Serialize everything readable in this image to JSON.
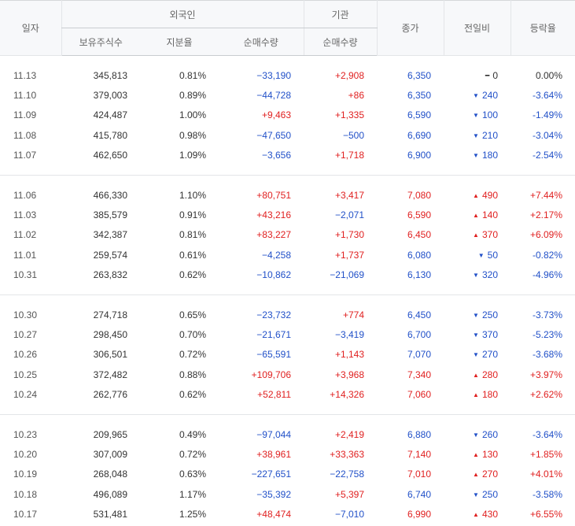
{
  "headers": {
    "date": "일자",
    "foreign": "외국인",
    "institution": "기관",
    "holdings": "보유주식수",
    "ratio": "지분율",
    "net_foreign": "순매수량",
    "net_inst": "순매수량",
    "close": "종가",
    "change": "전일비",
    "rate": "등락율"
  },
  "colors": {
    "up": "#e02020",
    "down": "#2150c8"
  },
  "groups": [
    [
      {
        "date": "11.13",
        "holdings": "345,813",
        "ratio": "0.81%",
        "net_foreign": "−33,190",
        "nf_dir": "down",
        "net_inst": "+2,908",
        "ni_dir": "up",
        "close": "6,350",
        "close_dir": "down",
        "change_dir": "flat",
        "change_icon": "dash-icon",
        "change": "0",
        "rate": "0.00%"
      },
      {
        "date": "11.10",
        "holdings": "379,003",
        "ratio": "0.89%",
        "net_foreign": "−44,728",
        "nf_dir": "down",
        "net_inst": "+86",
        "ni_dir": "up",
        "close": "6,350",
        "close_dir": "down",
        "change_dir": "down",
        "change_icon": "triangle-down-icon",
        "change": "240",
        "rate": "-3.64%"
      },
      {
        "date": "11.09",
        "holdings": "424,487",
        "ratio": "1.00%",
        "net_foreign": "+9,463",
        "nf_dir": "up",
        "net_inst": "+1,335",
        "ni_dir": "up",
        "close": "6,590",
        "close_dir": "down",
        "change_dir": "down",
        "change_icon": "triangle-down-icon",
        "change": "100",
        "rate": "-1.49%"
      },
      {
        "date": "11.08",
        "holdings": "415,780",
        "ratio": "0.98%",
        "net_foreign": "−47,650",
        "nf_dir": "down",
        "net_inst": "−500",
        "ni_dir": "down",
        "close": "6,690",
        "close_dir": "down",
        "change_dir": "down",
        "change_icon": "triangle-down-icon",
        "change": "210",
        "rate": "-3.04%"
      },
      {
        "date": "11.07",
        "holdings": "462,650",
        "ratio": "1.09%",
        "net_foreign": "−3,656",
        "nf_dir": "down",
        "net_inst": "+1,718",
        "ni_dir": "up",
        "close": "6,900",
        "close_dir": "down",
        "change_dir": "down",
        "change_icon": "triangle-down-icon",
        "change": "180",
        "rate": "-2.54%"
      }
    ],
    [
      {
        "date": "11.06",
        "holdings": "466,330",
        "ratio": "1.10%",
        "net_foreign": "+80,751",
        "nf_dir": "up",
        "net_inst": "+3,417",
        "ni_dir": "up",
        "close": "7,080",
        "close_dir": "up",
        "change_dir": "up",
        "change_icon": "triangle-up-icon",
        "change": "490",
        "rate": "+7.44%"
      },
      {
        "date": "11.03",
        "holdings": "385,579",
        "ratio": "0.91%",
        "net_foreign": "+43,216",
        "nf_dir": "up",
        "net_inst": "−2,071",
        "ni_dir": "down",
        "close": "6,590",
        "close_dir": "up",
        "change_dir": "up",
        "change_icon": "triangle-up-icon",
        "change": "140",
        "rate": "+2.17%"
      },
      {
        "date": "11.02",
        "holdings": "342,387",
        "ratio": "0.81%",
        "net_foreign": "+83,227",
        "nf_dir": "up",
        "net_inst": "+1,730",
        "ni_dir": "up",
        "close": "6,450",
        "close_dir": "up",
        "change_dir": "up",
        "change_icon": "triangle-up-icon",
        "change": "370",
        "rate": "+6.09%"
      },
      {
        "date": "11.01",
        "holdings": "259,574",
        "ratio": "0.61%",
        "net_foreign": "−4,258",
        "nf_dir": "down",
        "net_inst": "+1,737",
        "ni_dir": "up",
        "close": "6,080",
        "close_dir": "down",
        "change_dir": "down",
        "change_icon": "triangle-down-icon",
        "change": "50",
        "rate": "-0.82%"
      },
      {
        "date": "10.31",
        "holdings": "263,832",
        "ratio": "0.62%",
        "net_foreign": "−10,862",
        "nf_dir": "down",
        "net_inst": "−21,069",
        "ni_dir": "down",
        "close": "6,130",
        "close_dir": "down",
        "change_dir": "down",
        "change_icon": "triangle-down-icon",
        "change": "320",
        "rate": "-4.96%"
      }
    ],
    [
      {
        "date": "10.30",
        "holdings": "274,718",
        "ratio": "0.65%",
        "net_foreign": "−23,732",
        "nf_dir": "down",
        "net_inst": "+774",
        "ni_dir": "up",
        "close": "6,450",
        "close_dir": "down",
        "change_dir": "down",
        "change_icon": "triangle-down-icon",
        "change": "250",
        "rate": "-3.73%"
      },
      {
        "date": "10.27",
        "holdings": "298,450",
        "ratio": "0.70%",
        "net_foreign": "−21,671",
        "nf_dir": "down",
        "net_inst": "−3,419",
        "ni_dir": "down",
        "close": "6,700",
        "close_dir": "down",
        "change_dir": "down",
        "change_icon": "triangle-down-icon",
        "change": "370",
        "rate": "-5.23%"
      },
      {
        "date": "10.26",
        "holdings": "306,501",
        "ratio": "0.72%",
        "net_foreign": "−65,591",
        "nf_dir": "down",
        "net_inst": "+1,143",
        "ni_dir": "up",
        "close": "7,070",
        "close_dir": "down",
        "change_dir": "down",
        "change_icon": "triangle-down-icon",
        "change": "270",
        "rate": "-3.68%"
      },
      {
        "date": "10.25",
        "holdings": "372,482",
        "ratio": "0.88%",
        "net_foreign": "+109,706",
        "nf_dir": "up",
        "net_inst": "+3,968",
        "ni_dir": "up",
        "close": "7,340",
        "close_dir": "up",
        "change_dir": "up",
        "change_icon": "triangle-up-icon",
        "change": "280",
        "rate": "+3.97%"
      },
      {
        "date": "10.24",
        "holdings": "262,776",
        "ratio": "0.62%",
        "net_foreign": "+52,811",
        "nf_dir": "up",
        "net_inst": "+14,326",
        "ni_dir": "up",
        "close": "7,060",
        "close_dir": "up",
        "change_dir": "up",
        "change_icon": "triangle-up-icon",
        "change": "180",
        "rate": "+2.62%"
      }
    ],
    [
      {
        "date": "10.23",
        "holdings": "209,965",
        "ratio": "0.49%",
        "net_foreign": "−97,044",
        "nf_dir": "down",
        "net_inst": "+2,419",
        "ni_dir": "up",
        "close": "6,880",
        "close_dir": "down",
        "change_dir": "down",
        "change_icon": "triangle-down-icon",
        "change": "260",
        "rate": "-3.64%"
      },
      {
        "date": "10.20",
        "holdings": "307,009",
        "ratio": "0.72%",
        "net_foreign": "+38,961",
        "nf_dir": "up",
        "net_inst": "+33,363",
        "ni_dir": "up",
        "close": "7,140",
        "close_dir": "up",
        "change_dir": "up",
        "change_icon": "triangle-up-icon",
        "change": "130",
        "rate": "+1.85%"
      },
      {
        "date": "10.19",
        "holdings": "268,048",
        "ratio": "0.63%",
        "net_foreign": "−227,651",
        "nf_dir": "down",
        "net_inst": "−22,758",
        "ni_dir": "down",
        "close": "7,010",
        "close_dir": "up",
        "change_dir": "up",
        "change_icon": "triangle-up-icon",
        "change": "270",
        "rate": "+4.01%"
      },
      {
        "date": "10.18",
        "holdings": "496,089",
        "ratio": "1.17%",
        "net_foreign": "−35,392",
        "nf_dir": "down",
        "net_inst": "+5,397",
        "ni_dir": "up",
        "close": "6,740",
        "close_dir": "down",
        "change_dir": "down",
        "change_icon": "triangle-down-icon",
        "change": "250",
        "rate": "-3.58%"
      },
      {
        "date": "10.17",
        "holdings": "531,481",
        "ratio": "1.25%",
        "net_foreign": "+48,474",
        "nf_dir": "up",
        "net_inst": "−7,010",
        "ni_dir": "down",
        "close": "6,990",
        "close_dir": "up",
        "change_dir": "up",
        "change_icon": "triangle-up-icon",
        "change": "430",
        "rate": "+6.55%"
      }
    ]
  ]
}
